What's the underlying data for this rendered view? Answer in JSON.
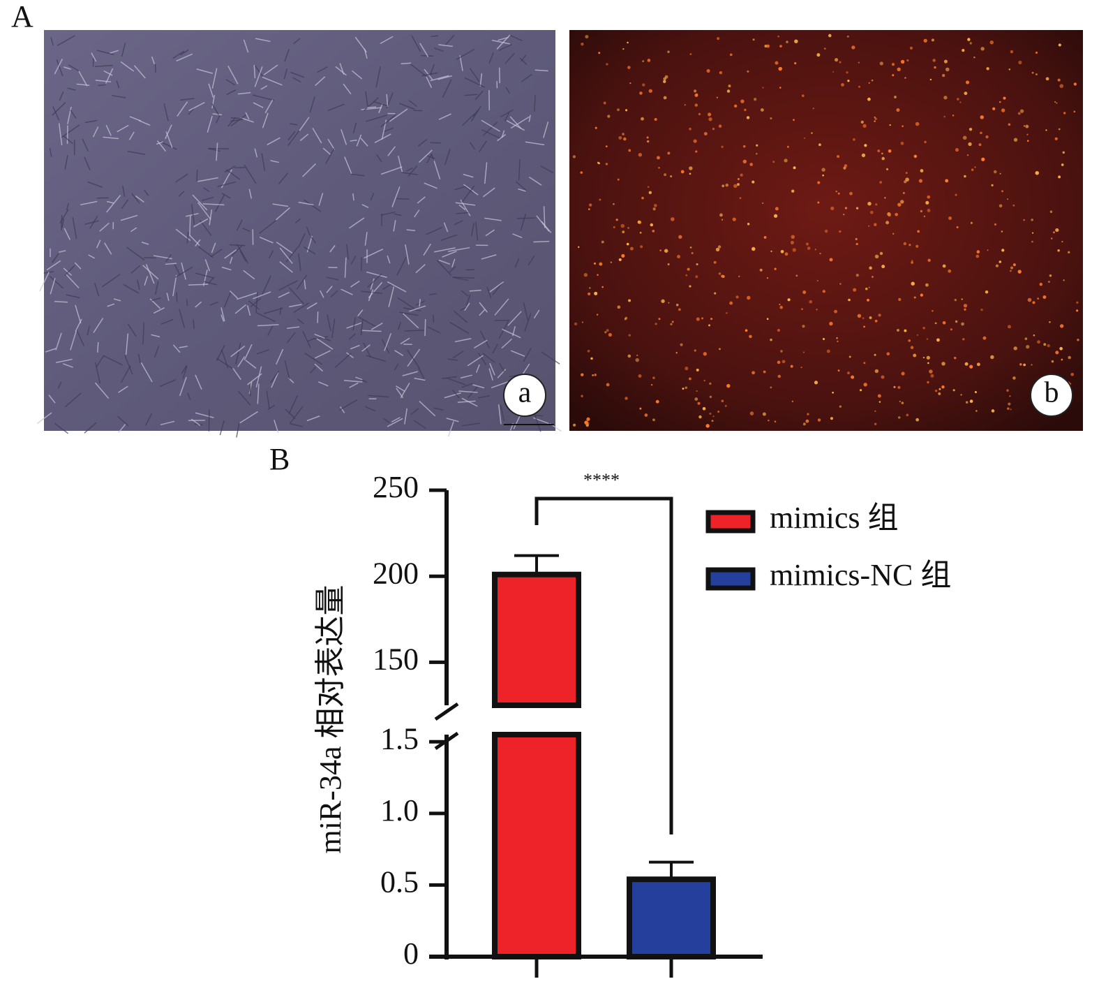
{
  "panel_a": {
    "label": "A",
    "images": [
      {
        "label": "a"
      },
      {
        "label": "b"
      }
    ]
  },
  "chart_data": {
    "type": "bar",
    "panel_label": "B",
    "ylabel": "miR-34a 相对表达量",
    "annotation": "****",
    "y_segments": [
      {
        "ylim": [
          0,
          1.55
        ],
        "yticks": [
          0,
          0.5,
          {
            "value": 1,
            "label": "1.0"
          },
          1.5
        ]
      },
      {
        "ylim": [
          125,
          250
        ],
        "yticks": [
          150,
          200,
          250
        ]
      }
    ],
    "series": [
      {
        "name": "mimics 组",
        "color": "#ee2229",
        "values": [
          201
        ],
        "errors": [
          11
        ]
      },
      {
        "name": "mimics-NC 组",
        "color": "#253f9c",
        "values": [
          0.54
        ],
        "errors": [
          0.12
        ]
      }
    ]
  }
}
